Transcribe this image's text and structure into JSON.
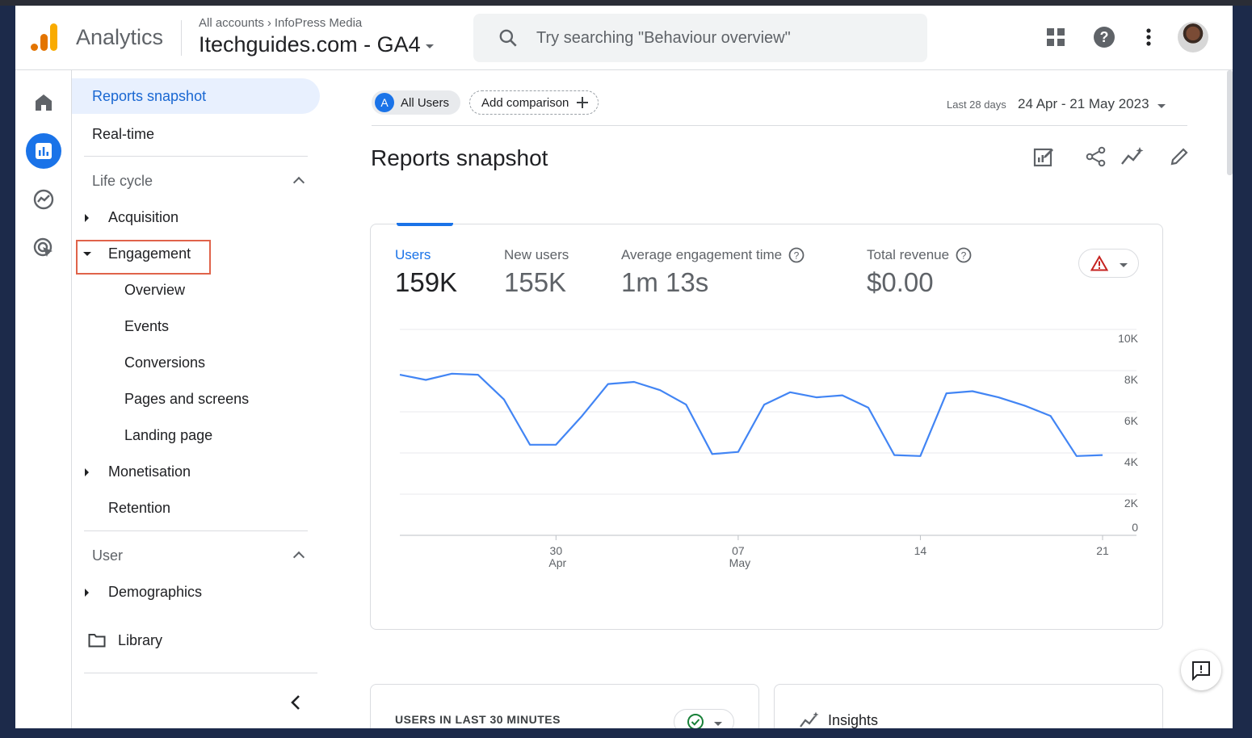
{
  "header": {
    "app_name": "Analytics",
    "breadcrumb_root": "All accounts",
    "breadcrumb_child": "InfoPress Media",
    "property": "Itechguides.com - GA4",
    "search_placeholder": "Try searching \"Behaviour overview\""
  },
  "nav": {
    "reports_snapshot": "Reports snapshot",
    "realtime": "Real-time",
    "lifecycle": "Life cycle",
    "acquisition": "Acquisition",
    "engagement": "Engagement",
    "overview": "Overview",
    "events": "Events",
    "conversions": "Conversions",
    "pages_screens": "Pages and screens",
    "landing_page": "Landing page",
    "monetisation": "Monetisation",
    "retention": "Retention",
    "user": "User",
    "demographics": "Demographics",
    "library": "Library"
  },
  "main": {
    "segment_letter": "A",
    "segment_chip": "All Users",
    "add_comparison": "Add comparison",
    "date_range_label": "Last 28 days",
    "date_range": "24 Apr - 21 May 2023",
    "title": "Reports snapshot",
    "metrics": [
      {
        "label": "Users",
        "value": "159K"
      },
      {
        "label": "New users",
        "value": "155K"
      },
      {
        "label": "Average engagement time",
        "value": "1m 13s"
      },
      {
        "label": "Total revenue",
        "value": "$0.00"
      }
    ],
    "card2_title": "USERS IN LAST 30 MINUTES",
    "insights": "Insights"
  },
  "colors": {
    "accent": "#1a73e8",
    "line": "#4285f4",
    "highlight": "#e0634a"
  },
  "chart_data": {
    "type": "line",
    "series": [
      {
        "name": "Users",
        "values": [
          7800,
          7550,
          7850,
          7800,
          6600,
          4400,
          4400,
          5800,
          7350,
          7450,
          7050,
          6350,
          3950,
          4050,
          6350,
          6950,
          6700,
          6800,
          6200,
          3900,
          3850,
          6900,
          7000,
          6700,
          6300,
          5800,
          3850,
          3900
        ]
      }
    ],
    "x_tick_labels": [
      {
        "day": "30",
        "month": "Apr"
      },
      {
        "day": "07",
        "month": "May"
      },
      {
        "day": "14",
        "month": ""
      },
      {
        "day": "21",
        "month": ""
      }
    ],
    "y_tick_labels": [
      "10K",
      "8K",
      "6K",
      "4K",
      "2K",
      "0"
    ],
    "ylim": [
      0,
      10000
    ],
    "grid": true
  }
}
